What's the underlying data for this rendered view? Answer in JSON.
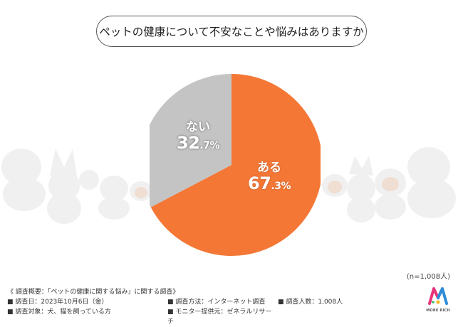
{
  "title": "ペットの健康について不安なことや悩みはありますか",
  "chart_data": {
    "type": "pie",
    "slices": [
      {
        "label": "ある",
        "value": 67.3,
        "display": "67.3%",
        "color": "#f47735"
      },
      {
        "label": "ない",
        "value": 32.7,
        "display": "32.7%",
        "color": "#c4c4c4"
      }
    ]
  },
  "labels": {
    "aru_name": "ある",
    "aru_int": "67",
    "aru_dec": ".3",
    "aru_unit": "%",
    "nai_name": "ない",
    "nai_int": "32",
    "nai_dec": ".7",
    "nai_unit": "%"
  },
  "sample_size": "(n=1,008人)",
  "footer": {
    "overview": "《 調査概要：「ペットの健康に関する悩み」に関する調査》",
    "date": "■ 調査日：2023年10月6日（金）",
    "method": "■ 調査方法：インターネット調査",
    "count": "■ 調査人数：1,008人",
    "target": "■ 調査対象：犬、猫を飼っている方",
    "provider": "■ モニター提供元：ゼネラルリサーチ"
  },
  "logo": {
    "text": "MORE RICH",
    "colors": [
      "#e8347b",
      "#2e8bd8",
      "#f2b71a",
      "#3ab56a"
    ]
  }
}
